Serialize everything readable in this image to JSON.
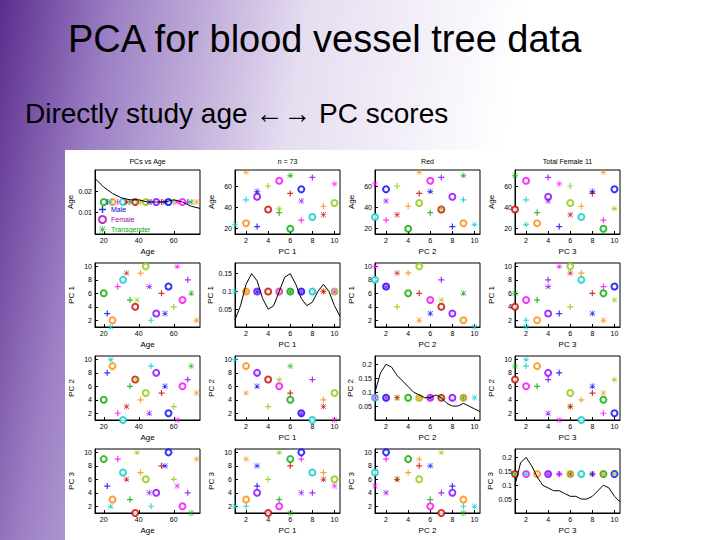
{
  "title": "PCA for blood vessel tree data",
  "subtitle": "Directly study age ←→ PC scores",
  "chart_data": {
    "type": "scatter_matrix",
    "legend": "bottom-left",
    "panel_titles": [
      "PCs vs Age",
      "n = 73",
      "Red",
      "Total Female 11"
    ],
    "variables": [
      {
        "label": "Age",
        "lim": [
          15,
          75
        ],
        "ticks": [
          20,
          40,
          60
        ]
      },
      {
        "label": "PC 1",
        "lim": [
          1,
          10.5
        ],
        "ticks": [
          2,
          4,
          6,
          8,
          10
        ]
      },
      {
        "label": "PC 2",
        "lim": [
          1,
          10.5
        ],
        "ticks": [
          2,
          4,
          6,
          8,
          10
        ]
      },
      {
        "label": "PC 3",
        "lim": [
          1,
          10.5
        ],
        "ticks": [
          2,
          4,
          6,
          8,
          10
        ]
      }
    ],
    "densities": [
      {
        "x": [
          15,
          20,
          25,
          30,
          35,
          40,
          45,
          50,
          55,
          60,
          65,
          70,
          75
        ],
        "y": [
          0.026,
          0.022,
          0.019,
          0.017,
          0.016,
          0.016,
          0.015,
          0.015,
          0.015,
          0.016,
          0.015,
          0.013,
          0.012
        ],
        "ylim": [
          0,
          0.03
        ],
        "yticks": [
          0.01,
          0.02
        ],
        "points_level": 0.015
      },
      {
        "x": [
          1,
          1.5,
          2,
          2.5,
          3,
          3.5,
          4,
          4.5,
          5,
          5.5,
          6,
          6.5,
          7,
          7.5,
          8,
          8.5,
          9,
          9.5,
          10,
          10.5
        ],
        "y": [
          0.02,
          0.06,
          0.12,
          0.15,
          0.13,
          0.08,
          0.05,
          0.06,
          0.1,
          0.14,
          0.15,
          0.12,
          0.08,
          0.06,
          0.07,
          0.1,
          0.12,
          0.1,
          0.06,
          0.03
        ],
        "ylim": [
          0,
          0.18
        ],
        "yticks": [
          0.05,
          0.1,
          0.15
        ],
        "points_level": 0.1
      },
      {
        "x": [
          1,
          1.5,
          2,
          2.5,
          3,
          3.5,
          4,
          4.5,
          5,
          5.5,
          6,
          6.5,
          7,
          7.5,
          8,
          8.5,
          9,
          9.5,
          10,
          10.5
        ],
        "y": [
          0.1,
          0.17,
          0.2,
          0.19,
          0.16,
          0.14,
          0.12,
          0.1,
          0.09,
          0.08,
          0.08,
          0.09,
          0.08,
          0.06,
          0.05,
          0.05,
          0.06,
          0.05,
          0.04,
          0.03
        ],
        "ylim": [
          0,
          0.23
        ],
        "yticks": [
          0.05,
          0.1,
          0.15,
          0.2
        ],
        "points_level": 0.08
      },
      {
        "x": [
          1,
          1.5,
          2,
          2.5,
          3,
          3.5,
          4,
          4.5,
          5,
          5.5,
          6,
          6.5,
          7,
          7.5,
          8,
          8.5,
          9,
          9.5,
          10,
          10.5
        ],
        "y": [
          0.1,
          0.18,
          0.2,
          0.17,
          0.13,
          0.1,
          0.09,
          0.08,
          0.08,
          0.07,
          0.06,
          0.06,
          0.05,
          0.05,
          0.06,
          0.08,
          0.1,
          0.09,
          0.06,
          0.04
        ],
        "ylim": [
          0,
          0.23
        ],
        "yticks": [
          0.05,
          0.1,
          0.15,
          0.2
        ],
        "points_level": 0.14
      }
    ],
    "series": [
      {
        "name": "Male",
        "marker": "plus",
        "color": "#0000cc",
        "colors": [
          "#0000ff",
          "#ff00ff",
          "#00aa00",
          "#ff8800",
          "#00cccc",
          "#cc0000",
          "#88cc00",
          "#8800ff"
        ],
        "values": [
          [
            22,
            28,
            35,
            41,
            47,
            53,
            60,
            68
          ],
          [
            3,
            7,
            5,
            9,
            2,
            6,
            4,
            8
          ],
          [
            8,
            2,
            6,
            4,
            9,
            5,
            3,
            7
          ],
          [
            5,
            9,
            3,
            7,
            2,
            8,
            6,
            4
          ]
        ]
      },
      {
        "name": "Female",
        "marker": "circle",
        "color": "#aa00aa",
        "colors": [
          "#00aa00",
          "#ff8800",
          "#00cccc",
          "#cc0000",
          "#88cc00",
          "#8800ff",
          "#0000ff",
          "#ff00ff"
        ],
        "values": [
          [
            20,
            25,
            31,
            38,
            44,
            50,
            57,
            65
          ],
          [
            6,
            2,
            8,
            4,
            10,
            3,
            7,
            5
          ],
          [
            4,
            9,
            1,
            7,
            5,
            8,
            2,
            6
          ],
          [
            9,
            3,
            7,
            1,
            6,
            4,
            10,
            2
          ]
        ]
      },
      {
        "name": "Transgender",
        "marker": "asterisk",
        "color": "#00aa00",
        "colors": [
          "#00cccc",
          "#cc0000",
          "#88cc00",
          "#8800ff",
          "#0000ff",
          "#ff00ff",
          "#00aa00",
          "#ff8800"
        ],
        "values": [
          [
            24,
            33,
            39,
            46,
            55,
            62,
            70,
            73
          ],
          [
            1,
            9,
            5,
            7,
            3,
            10,
            6,
            2
          ],
          [
            10,
            3,
            7,
            2,
            6,
            1,
            9,
            5
          ],
          [
            2,
            6,
            10,
            4,
            8,
            5,
            1,
            9
          ]
        ]
      }
    ]
  }
}
